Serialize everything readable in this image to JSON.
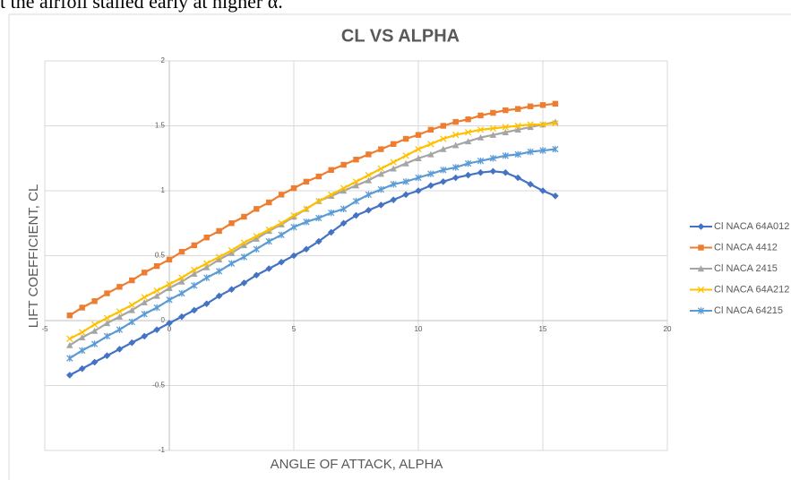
{
  "caption": "t the airfoil stalled early at higher α.",
  "chart_data": {
    "type": "line",
    "title": "CL VS ALPHA",
    "x_label": "ANGLE OF ATTACK, ALPHA",
    "y_label": "LIFT COEFFICIENT, CL",
    "xlim": [
      -5,
      20
    ],
    "xticks": [
      -5,
      0,
      5,
      10,
      15,
      20
    ],
    "ylim": [
      -1,
      2
    ],
    "yticks": [
      -1,
      -0.5,
      0,
      0.5,
      1,
      1.5,
      2
    ],
    "grid": true,
    "legend": "right",
    "x": [
      -4,
      -3.5,
      -3,
      -2.5,
      -2,
      -1.5,
      -1,
      -0.5,
      0,
      0.5,
      1,
      1.5,
      2,
      2.5,
      3,
      3.5,
      4,
      4.5,
      5,
      5.5,
      6,
      6.5,
      7,
      7.5,
      8,
      8.5,
      9,
      9.5,
      10,
      10.5,
      11,
      11.5,
      12,
      12.5,
      13,
      13.5,
      14,
      14.5,
      15,
      15.5
    ],
    "series": [
      {
        "name": "Cl NACA 64A012",
        "color": "#4472c4",
        "marker": "diamond",
        "values": [
          -0.42,
          -0.37,
          -0.32,
          -0.27,
          -0.22,
          -0.17,
          -0.12,
          -0.07,
          -0.02,
          0.03,
          0.08,
          0.13,
          0.19,
          0.24,
          0.29,
          0.35,
          0.4,
          0.45,
          0.5,
          0.55,
          0.61,
          0.68,
          0.75,
          0.81,
          0.85,
          0.89,
          0.93,
          0.97,
          1.0,
          1.04,
          1.07,
          1.1,
          1.12,
          1.14,
          1.15,
          1.14,
          1.1,
          1.05,
          1.0,
          0.96
        ]
      },
      {
        "name": "Cl NACA 4412",
        "color": "#ed7d31",
        "marker": "square",
        "values": [
          0.04,
          0.1,
          0.15,
          0.21,
          0.26,
          0.31,
          0.37,
          0.42,
          0.47,
          0.53,
          0.58,
          0.64,
          0.69,
          0.75,
          0.8,
          0.86,
          0.91,
          0.97,
          1.02,
          1.07,
          1.11,
          1.16,
          1.2,
          1.24,
          1.28,
          1.32,
          1.36,
          1.4,
          1.43,
          1.47,
          1.5,
          1.53,
          1.55,
          1.58,
          1.6,
          1.62,
          1.63,
          1.65,
          1.66,
          1.67
        ]
      },
      {
        "name": "Cl NACA 2415",
        "color": "#a5a5a5",
        "marker": "triangle",
        "values": [
          -0.19,
          -0.13,
          -0.08,
          -0.02,
          0.03,
          0.08,
          0.14,
          0.19,
          0.25,
          0.3,
          0.36,
          0.41,
          0.47,
          0.52,
          0.58,
          0.63,
          0.69,
          0.74,
          0.8,
          0.86,
          0.92,
          0.96,
          1.0,
          1.04,
          1.08,
          1.13,
          1.17,
          1.21,
          1.25,
          1.28,
          1.32,
          1.35,
          1.38,
          1.41,
          1.43,
          1.45,
          1.47,
          1.49,
          1.51,
          1.53
        ]
      },
      {
        "name": "Cl NACA 64A212",
        "color": "#ffc000",
        "marker": "x",
        "values": [
          -0.14,
          -0.09,
          -0.03,
          0.02,
          0.07,
          0.12,
          0.18,
          0.23,
          0.28,
          0.33,
          0.39,
          0.44,
          0.49,
          0.54,
          0.6,
          0.65,
          0.7,
          0.75,
          0.81,
          0.86,
          0.92,
          0.97,
          1.02,
          1.07,
          1.12,
          1.17,
          1.22,
          1.27,
          1.32,
          1.36,
          1.4,
          1.43,
          1.45,
          1.47,
          1.48,
          1.49,
          1.5,
          1.51,
          1.51,
          1.52
        ]
      },
      {
        "name": "Cl NACA 64215",
        "color": "#5b9bd5",
        "marker": "star",
        "values": [
          -0.29,
          -0.23,
          -0.18,
          -0.12,
          -0.07,
          -0.01,
          0.05,
          0.1,
          0.16,
          0.21,
          0.27,
          0.33,
          0.38,
          0.44,
          0.49,
          0.55,
          0.61,
          0.66,
          0.72,
          0.76,
          0.79,
          0.83,
          0.86,
          0.92,
          0.97,
          1.01,
          1.05,
          1.07,
          1.1,
          1.13,
          1.16,
          1.18,
          1.21,
          1.23,
          1.25,
          1.27,
          1.28,
          1.3,
          1.31,
          1.32
        ]
      }
    ]
  }
}
